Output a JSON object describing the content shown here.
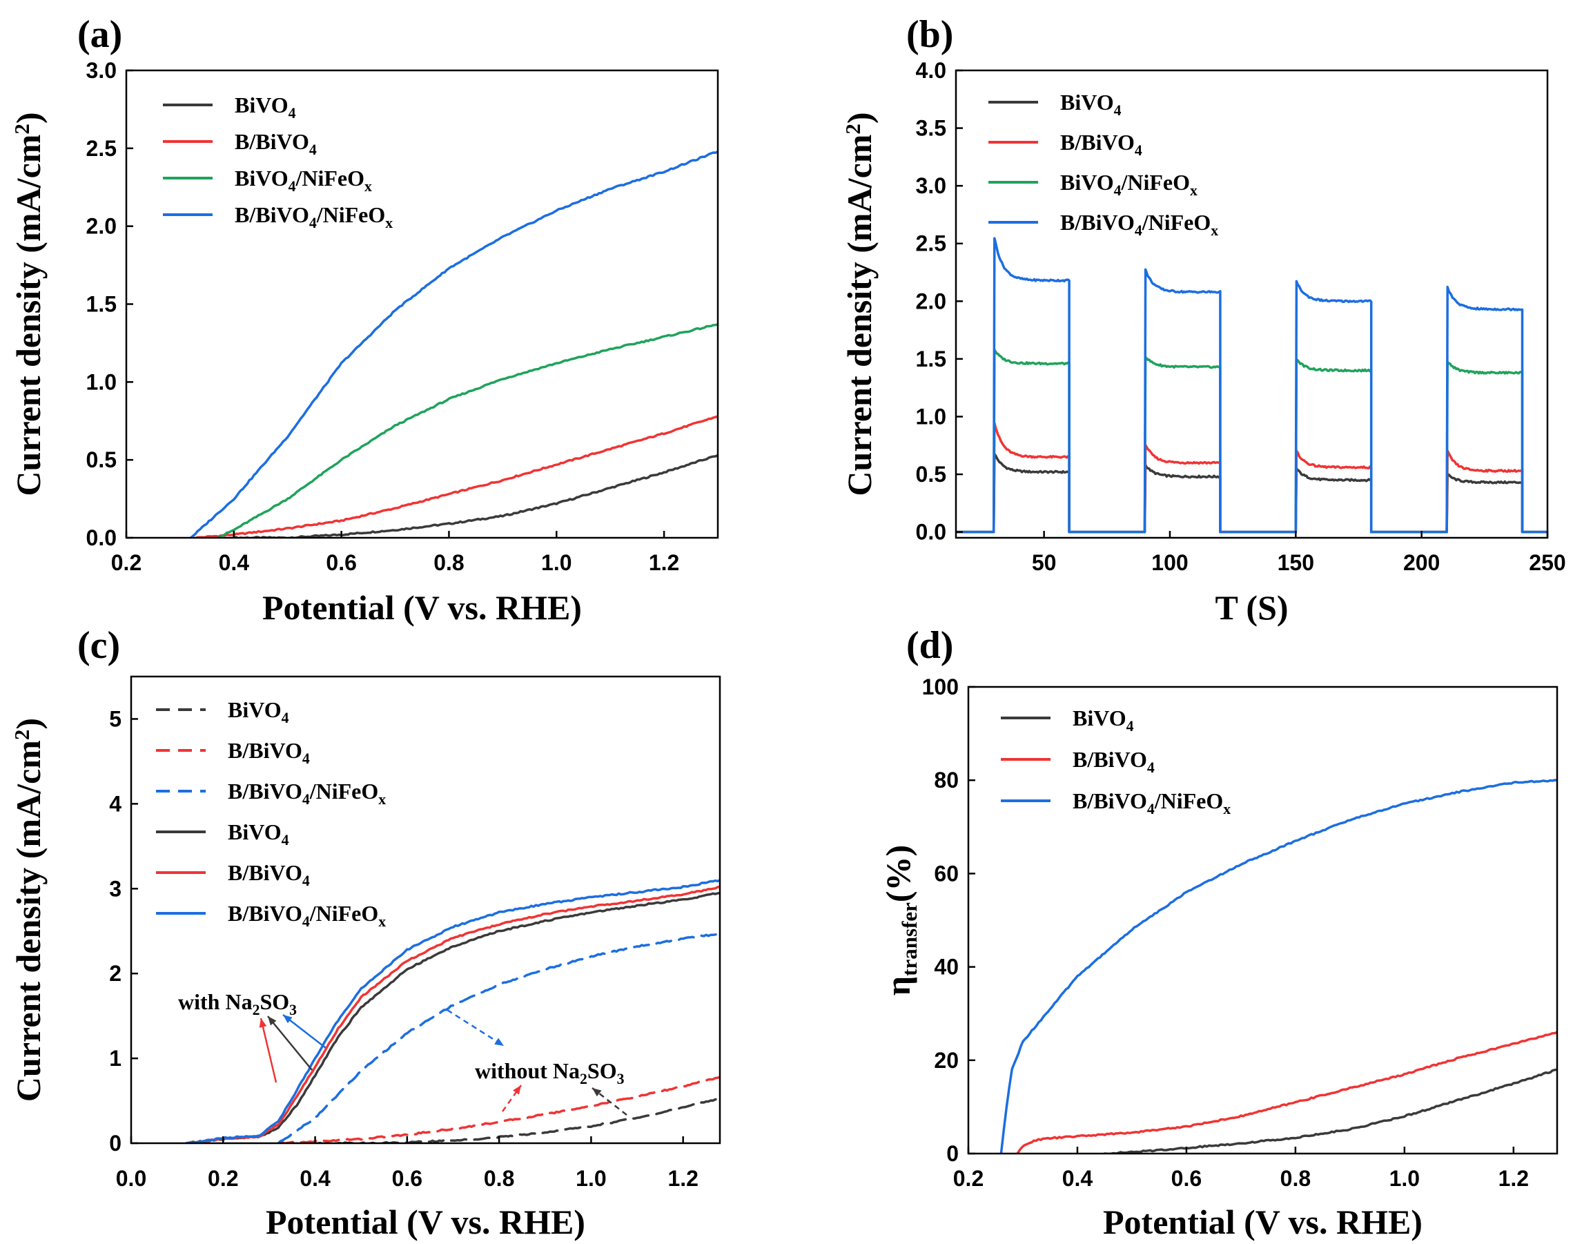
{
  "chart_data": [
    {
      "id": "a",
      "type": "line",
      "panel_label": "(a)",
      "xlabel": "Potential (V vs. RHE)",
      "ylabel": "Current density (mA/cm2)",
      "ylabel_parts": [
        "Current density (mA/cm",
        "2",
        ")"
      ],
      "xlim": [
        0.2,
        1.3
      ],
      "ylim": [
        0,
        3.0
      ],
      "xticks": [
        0.2,
        0.4,
        0.6,
        0.8,
        1.0,
        1.2
      ],
      "xtick_labels": [
        "0.2",
        "0.4",
        "0.6",
        "0.8",
        "1.0",
        "1.2"
      ],
      "yticks": [
        0,
        0.5,
        1.0,
        1.5,
        2.0,
        2.5,
        3.0
      ],
      "ytick_labels": [
        "0.0",
        "0.5",
        "1.0",
        "1.5",
        "2.0",
        "2.5",
        "3.0"
      ],
      "legend_position": "top-left",
      "series": [
        {
          "name": "BiVO4",
          "label": [
            "BiVO",
            "4",
            ""
          ],
          "color": "#3a3a3a",
          "dashed": false,
          "x": [
            0.4,
            0.5,
            0.6,
            0.7,
            0.8,
            0.9,
            1.0,
            1.1,
            1.2,
            1.3
          ],
          "y": [
            0.0,
            0.0,
            0.02,
            0.05,
            0.09,
            0.14,
            0.22,
            0.32,
            0.42,
            0.53
          ]
        },
        {
          "name": "B/BiVO4",
          "label": [
            "B/BiVO",
            "4",
            ""
          ],
          "color": "#f03434",
          "dashed": false,
          "x": [
            0.33,
            0.4,
            0.5,
            0.6,
            0.7,
            0.8,
            0.9,
            1.0,
            1.1,
            1.2,
            1.3
          ],
          "y": [
            0.0,
            0.02,
            0.06,
            0.11,
            0.19,
            0.28,
            0.37,
            0.47,
            0.57,
            0.67,
            0.78
          ]
        },
        {
          "name": "BiVO4/NiFeOx",
          "label": [
            "BiVO",
            "4",
            "/NiFeO",
            "x"
          ],
          "color": "#1fa35b",
          "dashed": false,
          "x": [
            0.37,
            0.4,
            0.5,
            0.6,
            0.7,
            0.8,
            0.9,
            1.0,
            1.1,
            1.2,
            1.3
          ],
          "y": [
            0.0,
            0.05,
            0.25,
            0.5,
            0.72,
            0.89,
            1.02,
            1.12,
            1.21,
            1.29,
            1.37
          ]
        },
        {
          "name": "B/BiVO4/NiFeOx",
          "label": [
            "B/BiVO",
            "4",
            "/NiFeO",
            "x"
          ],
          "color": "#1c6ee0",
          "dashed": false,
          "x": [
            0.32,
            0.4,
            0.5,
            0.6,
            0.7,
            0.8,
            0.9,
            1.0,
            1.1,
            1.2,
            1.3
          ],
          "y": [
            0.0,
            0.25,
            0.65,
            1.12,
            1.46,
            1.73,
            1.93,
            2.1,
            2.24,
            2.35,
            2.48
          ]
        }
      ]
    },
    {
      "id": "b",
      "type": "line",
      "panel_label": "(b)",
      "xlabel": "T (S)",
      "ylabel": "Current density (mA/cm2)",
      "ylabel_parts": [
        "Current density (mA/cm",
        "2",
        ")"
      ],
      "xlim": [
        15,
        250
      ],
      "ylim": [
        -0.05,
        4.0
      ],
      "xticks": [
        50,
        100,
        150,
        200,
        250
      ],
      "xtick_labels": [
        "50",
        "100",
        "150",
        "200",
        "250"
      ],
      "yticks": [
        0,
        0.5,
        1.0,
        1.5,
        2.0,
        2.5,
        3.0,
        3.5,
        4.0
      ],
      "ytick_labels": [
        "0.0",
        "0.5",
        "1.0",
        "1.5",
        "2.0",
        "2.5",
        "3.0",
        "3.5",
        "4.0"
      ],
      "legend_position": "top-left",
      "on_periods": [
        [
          30,
          60
        ],
        [
          90,
          120
        ],
        [
          150,
          180
        ],
        [
          210,
          240
        ]
      ],
      "series": [
        {
          "name": "BiVO4",
          "label": [
            "BiVO",
            "4",
            ""
          ],
          "color": "#3a3a3a",
          "dashed": false,
          "peaks": [
            0.68,
            0.58,
            0.55,
            0.5
          ],
          "plateau_end": [
            0.52,
            0.48,
            0.45,
            0.43
          ]
        },
        {
          "name": "B/BiVO4",
          "label": [
            "B/BiVO",
            "4",
            ""
          ],
          "color": "#f03434",
          "dashed": false,
          "peaks": [
            0.95,
            0.76,
            0.7,
            0.7
          ],
          "plateau_end": [
            0.65,
            0.6,
            0.56,
            0.53
          ]
        },
        {
          "name": "BiVO4/NiFeOx",
          "label": [
            "BiVO",
            "4",
            "/NiFeO",
            "x"
          ],
          "color": "#1fa35b",
          "dashed": false,
          "peaks": [
            1.58,
            1.52,
            1.5,
            1.48
          ],
          "plateau_end": [
            1.46,
            1.43,
            1.4,
            1.38
          ]
        },
        {
          "name": "B/BiVO4/NiFeOx",
          "label": [
            "B/BiVO",
            "4",
            "/NiFeO",
            "x"
          ],
          "color": "#1c6ee0",
          "dashed": false,
          "peaks": [
            2.55,
            2.27,
            2.17,
            2.12
          ],
          "plateau_end": [
            2.18,
            2.08,
            2.0,
            1.93
          ]
        }
      ]
    },
    {
      "id": "c",
      "type": "line",
      "panel_label": "(c)",
      "xlabel": "Potential (V vs. RHE)",
      "ylabel": "Current density (mA/cm2)",
      "ylabel_parts": [
        "Current density (mA/cm",
        "2",
        ")"
      ],
      "xlim": [
        0.0,
        1.28
      ],
      "ylim": [
        0,
        5.5
      ],
      "xticks": [
        0.0,
        0.2,
        0.4,
        0.6,
        0.8,
        1.0,
        1.2
      ],
      "xtick_labels": [
        "0.0",
        "0.2",
        "0.4",
        "0.6",
        "0.8",
        "1.0",
        "1.2"
      ],
      "yticks": [
        0,
        1,
        2,
        3,
        4,
        5
      ],
      "ytick_labels": [
        "0",
        "1",
        "2",
        "3",
        "4",
        "5"
      ],
      "legend_position": "top-left",
      "annotations": [
        {
          "text": [
            "with Na",
            "2",
            "SO",
            "3",
            ""
          ]
        },
        {
          "text": [
            "without Na",
            "2",
            "SO",
            "3",
            ""
          ]
        }
      ],
      "series": [
        {
          "name": "BiVO4",
          "label": [
            "BiVO",
            "4",
            ""
          ],
          "color": "#3a3a3a",
          "dashed": true,
          "x": [
            0.35,
            0.5,
            0.6,
            0.7,
            0.8,
            0.9,
            1.0,
            1.1,
            1.2,
            1.28
          ],
          "y": [
            0.0,
            0.0,
            0.01,
            0.03,
            0.07,
            0.13,
            0.2,
            0.3,
            0.42,
            0.53
          ]
        },
        {
          "name": "B/BiVO4",
          "label": [
            "B/BiVO",
            "4",
            ""
          ],
          "color": "#f03434",
          "dashed": true,
          "x": [
            0.32,
            0.4,
            0.5,
            0.6,
            0.7,
            0.8,
            0.9,
            1.0,
            1.1,
            1.2,
            1.28
          ],
          "y": [
            0.0,
            0.02,
            0.05,
            0.1,
            0.17,
            0.25,
            0.34,
            0.44,
            0.55,
            0.67,
            0.78
          ]
        },
        {
          "name": "B/BiVO4/NiFeOx",
          "label": [
            "B/BiVO",
            "4",
            "/NiFeO",
            "x"
          ],
          "color": "#1c6ee0",
          "dashed": true,
          "x": [
            0.32,
            0.4,
            0.5,
            0.6,
            0.7,
            0.8,
            0.9,
            1.0,
            1.1,
            1.2,
            1.28
          ],
          "y": [
            0.0,
            0.3,
            0.85,
            1.3,
            1.63,
            1.87,
            2.05,
            2.2,
            2.32,
            2.41,
            2.47
          ]
        },
        {
          "name": "BiVO4",
          "label": [
            "BiVO",
            "4",
            ""
          ],
          "color": "#3a3a3a",
          "dashed": false,
          "x": [
            0.12,
            0.2,
            0.28,
            0.32,
            0.36,
            0.4,
            0.45,
            0.5,
            0.6,
            0.7,
            0.8,
            0.9,
            1.0,
            1.1,
            1.2,
            1.28
          ],
          "y": [
            0.0,
            0.05,
            0.08,
            0.18,
            0.45,
            0.8,
            1.25,
            1.6,
            2.05,
            2.32,
            2.5,
            2.62,
            2.72,
            2.8,
            2.87,
            2.95
          ]
        },
        {
          "name": "B/BiVO4",
          "label": [
            "B/BiVO",
            "4",
            ""
          ],
          "color": "#f03434",
          "dashed": false,
          "x": [
            0.12,
            0.2,
            0.28,
            0.32,
            0.36,
            0.4,
            0.45,
            0.5,
            0.6,
            0.7,
            0.8,
            0.9,
            1.0,
            1.1,
            1.2,
            1.28
          ],
          "y": [
            0.0,
            0.05,
            0.08,
            0.22,
            0.55,
            0.9,
            1.35,
            1.72,
            2.15,
            2.42,
            2.58,
            2.7,
            2.79,
            2.86,
            2.93,
            3.02
          ]
        },
        {
          "name": "B/BiVO4/NiFeOx",
          "label": [
            "B/BiVO",
            "4",
            "/NiFeO",
            "x"
          ],
          "color": "#1c6ee0",
          "dashed": false,
          "x": [
            0.12,
            0.2,
            0.28,
            0.32,
            0.36,
            0.4,
            0.45,
            0.5,
            0.6,
            0.7,
            0.8,
            0.9,
            1.0,
            1.1,
            1.2,
            1.28
          ],
          "y": [
            0.0,
            0.06,
            0.09,
            0.26,
            0.62,
            1.0,
            1.45,
            1.82,
            2.28,
            2.55,
            2.72,
            2.82,
            2.9,
            2.96,
            3.02,
            3.1
          ]
        }
      ]
    },
    {
      "id": "d",
      "type": "line",
      "panel_label": "(d)",
      "xlabel": "Potential (V vs. RHE)",
      "ylabel": "η transfer(%)",
      "ylabel_parts": [
        "η",
        "transfer",
        "(%)"
      ],
      "xlim": [
        0.2,
        1.28
      ],
      "ylim": [
        0,
        100
      ],
      "xticks": [
        0.2,
        0.4,
        0.6,
        0.8,
        1.0,
        1.2
      ],
      "xtick_labels": [
        "0.2",
        "0.4",
        "0.6",
        "0.8",
        "1.0",
        "1.2"
      ],
      "yticks": [
        0,
        20,
        40,
        60,
        80,
        100
      ],
      "ytick_labels": [
        "0",
        "20",
        "40",
        "60",
        "80",
        "100"
      ],
      "legend_position": "top-left",
      "series": [
        {
          "name": "BiVO4",
          "label": [
            "BiVO",
            "4",
            ""
          ],
          "color": "#3a3a3a",
          "dashed": false,
          "x": [
            0.45,
            0.5,
            0.6,
            0.7,
            0.8,
            0.9,
            1.0,
            1.1,
            1.2,
            1.28
          ],
          "y": [
            0.0,
            0.3,
            1.2,
            2.2,
            3.4,
            5.2,
            8.0,
            11.5,
            15.0,
            18.0
          ]
        },
        {
          "name": "B/BiVO4",
          "label": [
            "B/BiVO",
            "4",
            ""
          ],
          "color": "#f03434",
          "dashed": false,
          "x": [
            0.29,
            0.3,
            0.32,
            0.35,
            0.4,
            0.5,
            0.6,
            0.7,
            0.8,
            0.9,
            1.0,
            1.1,
            1.2,
            1.28
          ],
          "y": [
            0.0,
            1.5,
            2.8,
            3.3,
            3.7,
            4.5,
            5.8,
            8.0,
            11.0,
            14.0,
            17.0,
            20.5,
            23.5,
            26.0
          ]
        },
        {
          "name": "B/BiVO4/NiFeOx",
          "label": [
            "B/BiVO",
            "4",
            "/NiFeO",
            "x"
          ],
          "color": "#1c6ee0",
          "dashed": false,
          "x": [
            0.26,
            0.27,
            0.28,
            0.3,
            0.35,
            0.4,
            0.5,
            0.6,
            0.7,
            0.8,
            0.9,
            1.0,
            1.1,
            1.2,
            1.28
          ],
          "y": [
            0.0,
            10.0,
            18.0,
            24.0,
            31.0,
            38.0,
            48.0,
            56.0,
            62.0,
            67.0,
            71.5,
            75.0,
            77.5,
            79.5,
            80.0
          ]
        }
      ]
    }
  ]
}
